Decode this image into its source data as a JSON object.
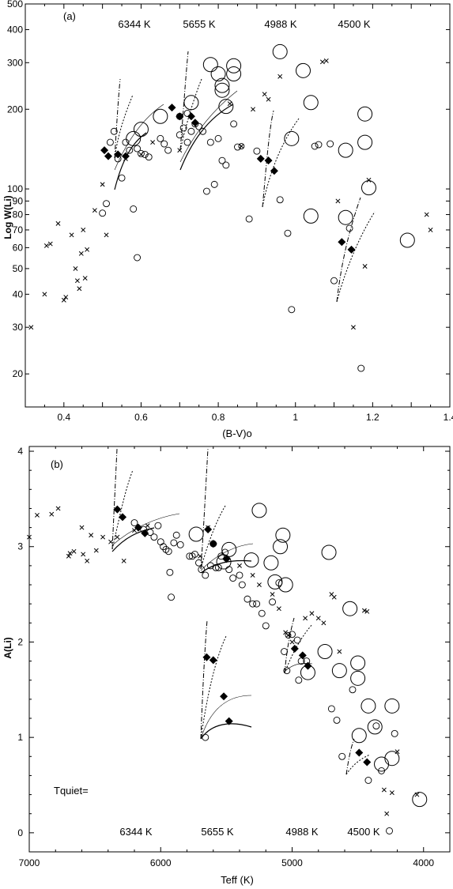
{
  "chart_data": [
    {
      "panel": "(a)",
      "type": "scatter",
      "xlabel": "(B-V)o",
      "ylabel": "Log W(Li)",
      "xlim": [
        0.3,
        1.4
      ],
      "ylim": [
        15,
        500
      ],
      "yscale": "log",
      "xticks": [
        "0.4",
        "0.6",
        "0.8",
        "1",
        "1.2",
        "1.4"
      ],
      "yticks": [
        "20",
        "30",
        "40",
        "50",
        "60",
        "70",
        "80",
        "90",
        "100",
        "200",
        "300",
        "400",
        "500"
      ],
      "annotations": [
        "6344 K",
        "5655 K",
        "4988 K",
        "4500 K"
      ],
      "series": [
        {
          "marker": "cross",
          "points": [
            [
              0.315,
              30
            ],
            [
              0.35,
              40
            ],
            [
              0.355,
              61
            ],
            [
              0.365,
              62
            ],
            [
              0.385,
              74
            ],
            [
              0.4,
              38
            ],
            [
              0.405,
              39
            ],
            [
              0.42,
              67
            ],
            [
              0.43,
              50
            ],
            [
              0.435,
              45
            ],
            [
              0.44,
              42
            ],
            [
              0.445,
              57
            ],
            [
              0.45,
              70
            ],
            [
              0.455,
              46
            ],
            [
              0.46,
              59
            ],
            [
              0.48,
              83
            ],
            [
              0.5,
              104
            ],
            [
              0.51,
              67
            ],
            [
              0.56,
              130
            ],
            [
              0.6,
              135
            ],
            [
              0.63,
              150
            ],
            [
              0.7,
              140
            ],
            [
              0.83,
              210
            ],
            [
              0.86,
              145
            ],
            [
              0.89,
              200
            ],
            [
              0.92,
              228
            ],
            [
              0.93,
              218
            ],
            [
              0.96,
              266
            ],
            [
              1.07,
              302
            ],
            [
              1.08,
              305
            ],
            [
              1.11,
              90
            ],
            [
              1.15,
              30
            ],
            [
              1.18,
              51
            ],
            [
              1.19,
              108
            ],
            [
              1.34,
              80
            ],
            [
              1.35,
              70
            ]
          ]
        },
        {
          "marker": "open-circle",
          "points": [
            [
              0.5,
              81
            ],
            [
              0.51,
              88
            ],
            [
              0.52,
              150
            ],
            [
              0.53,
              165
            ],
            [
              0.54,
              130
            ],
            [
              0.55,
              110
            ],
            [
              0.56,
              150
            ],
            [
              0.57,
              140
            ],
            [
              0.58,
              84
            ],
            [
              0.59,
              55
            ],
            [
              0.59,
              142
            ],
            [
              0.6,
              136
            ],
            [
              0.61,
              135
            ],
            [
              0.62,
              132
            ],
            [
              0.65,
              155
            ],
            [
              0.66,
              148
            ],
            [
              0.67,
              140
            ],
            [
              0.7,
              160
            ],
            [
              0.71,
              170
            ],
            [
              0.72,
              150
            ],
            [
              0.73,
              165
            ],
            [
              0.74,
              176
            ],
            [
              0.75,
              172
            ],
            [
              0.76,
              165
            ],
            [
              0.77,
              98
            ],
            [
              0.78,
              150
            ],
            [
              0.79,
              104
            ],
            [
              0.8,
              155
            ],
            [
              0.81,
              128
            ],
            [
              0.82,
              123
            ],
            [
              0.84,
              176
            ],
            [
              0.85,
              144
            ],
            [
              0.88,
              77
            ],
            [
              0.96,
              91
            ],
            [
              0.98,
              68
            ],
            [
              0.99,
              35
            ],
            [
              1.1,
              45
            ],
            [
              1.14,
              71
            ],
            [
              1.17,
              21
            ],
            [
              1.06,
              147
            ],
            [
              1.09,
              148
            ],
            [
              1.05,
              145
            ],
            [
              0.9,
              139
            ],
            [
              0.7,
              188
            ],
            [
              0.72,
              193
            ]
          ]
        },
        {
          "marker": "open-circle-large",
          "points": [
            [
              0.58,
              155
            ],
            [
              0.6,
              168
            ],
            [
              0.65,
              188
            ],
            [
              0.73,
              212
            ],
            [
              0.78,
              295
            ],
            [
              0.8,
              272
            ],
            [
              0.81,
              246
            ],
            [
              0.82,
              205
            ],
            [
              0.84,
              292
            ],
            [
              0.96,
              330
            ],
            [
              0.99,
              155
            ],
            [
              1.02,
              280
            ],
            [
              1.04,
              212
            ],
            [
              1.04,
              79
            ],
            [
              1.13,
              78
            ],
            [
              1.13,
              140
            ],
            [
              1.18,
              192
            ],
            [
              1.18,
              150
            ],
            [
              1.19,
              101
            ],
            [
              1.29,
              64
            ],
            [
              0.84,
              272
            ],
            [
              0.81,
              236
            ]
          ]
        },
        {
          "marker": "filled-diamond",
          "points": [
            [
              0.505,
              140
            ],
            [
              0.515,
              133
            ],
            [
              0.54,
              135
            ],
            [
              0.56,
              133
            ],
            [
              0.68,
              203
            ],
            [
              0.7,
              188
            ],
            [
              0.73,
              188
            ],
            [
              0.74,
              178
            ],
            [
              0.91,
              130
            ],
            [
              0.93,
              128
            ],
            [
              0.945,
              117
            ],
            [
              1.12,
              63
            ],
            [
              1.145,
              59
            ]
          ]
        }
      ]
    },
    {
      "panel": "(b)",
      "type": "scatter",
      "xlabel": "Teff (K)",
      "ylabel": "A(Li)",
      "xlim": [
        7000,
        3800
      ],
      "ylim": [
        -0.2,
        4.05
      ],
      "xticks": [
        "7000",
        "6000",
        "5000",
        "4000"
      ],
      "yticks": [
        "0",
        "1",
        "2",
        "3",
        "4"
      ],
      "annotations": [
        "Tquiet=",
        "6344 K",
        "5655 K",
        "4988 K",
        "4500 K"
      ],
      "series": [
        {
          "marker": "cross",
          "points": [
            [
              7000,
              3.1
            ],
            [
              6940,
              3.33
            ],
            [
              6830,
              3.34
            ],
            [
              6780,
              3.4
            ],
            [
              6700,
              2.9
            ],
            [
              6690,
              2.93
            ],
            [
              6660,
              2.95
            ],
            [
              6600,
              3.2
            ],
            [
              6590,
              2.92
            ],
            [
              6560,
              2.85
            ],
            [
              6530,
              3.12
            ],
            [
              6490,
              2.96
            ],
            [
              6440,
              3.1
            ],
            [
              6380,
              3.05
            ],
            [
              6330,
              3.1
            ],
            [
              6280,
              2.85
            ],
            [
              6200,
              3.17
            ],
            [
              6100,
              3.22
            ],
            [
              5700,
              2.9
            ],
            [
              5640,
              3.2
            ],
            [
              5400,
              2.8
            ],
            [
              5300,
              2.7
            ],
            [
              5250,
              2.6
            ],
            [
              5150,
              2.5
            ],
            [
              5100,
              2.35
            ],
            [
              5050,
              2.1
            ],
            [
              5000,
              2.0
            ],
            [
              4900,
              2.25
            ],
            [
              4850,
              2.3
            ],
            [
              4800,
              2.25
            ],
            [
              4760,
              2.2
            ],
            [
              4700,
              2.5
            ],
            [
              4680,
              2.47
            ],
            [
              4640,
              1.9
            ],
            [
              4450,
              2.33
            ],
            [
              4430,
              2.32
            ],
            [
              4300,
              0.45
            ],
            [
              4280,
              0.2
            ],
            [
              4240,
              0.42
            ],
            [
              4200,
              0.85
            ],
            [
              4050,
              0.4
            ]
          ]
        },
        {
          "marker": "open-circle",
          "points": [
            [
              6200,
              3.25
            ],
            [
              6130,
              3.18
            ],
            [
              6080,
              3.15
            ],
            [
              6050,
              3.1
            ],
            [
              6020,
              3.22
            ],
            [
              6000,
              3.05
            ],
            [
              5980,
              3.0
            ],
            [
              5960,
              2.97
            ],
            [
              5940,
              2.95
            ],
            [
              5930,
              2.73
            ],
            [
              5920,
              2.47
            ],
            [
              5900,
              3.04
            ],
            [
              5880,
              3.12
            ],
            [
              5850,
              3.02
            ],
            [
              5780,
              2.9
            ],
            [
              5760,
              2.9
            ],
            [
              5740,
              2.92
            ],
            [
              5710,
              2.83
            ],
            [
              5690,
              2.76
            ],
            [
              5660,
              2.7
            ],
            [
              5620,
              2.8
            ],
            [
              5600,
              3.03
            ],
            [
              5580,
              2.78
            ],
            [
              5560,
              2.78
            ],
            [
              5540,
              2.9
            ],
            [
              5510,
              2.94
            ],
            [
              5480,
              2.76
            ],
            [
              5450,
              2.67
            ],
            [
              5400,
              2.7
            ],
            [
              5380,
              2.6
            ],
            [
              5340,
              2.45
            ],
            [
              5300,
              2.4
            ],
            [
              5270,
              2.4
            ],
            [
              5230,
              2.3
            ],
            [
              5200,
              2.17
            ],
            [
              5150,
              2.42
            ],
            [
              5100,
              2.62
            ],
            [
              5060,
              1.9
            ],
            [
              5040,
              1.7
            ],
            [
              5000,
              2.08
            ],
            [
              4960,
              2.02
            ],
            [
              4950,
              1.6
            ],
            [
              4930,
              1.8
            ],
            [
              4890,
              1.8
            ],
            [
              4700,
              1.3
            ],
            [
              4660,
              1.18
            ],
            [
              4620,
              0.8
            ],
            [
              4540,
              1.5
            ],
            [
              4420,
              0.55
            ],
            [
              4360,
              1.12
            ],
            [
              4320,
              0.65
            ],
            [
              4260,
              0.02
            ],
            [
              4220,
              1.04
            ],
            [
              5660,
              1.0
            ]
          ]
        },
        {
          "marker": "open-circle-large",
          "points": [
            [
              5730,
              3.13
            ],
            [
              5520,
              2.84
            ],
            [
              5480,
              2.97
            ],
            [
              5310,
              2.86
            ],
            [
              5250,
              3.38
            ],
            [
              5160,
              2.83
            ],
            [
              5130,
              2.63
            ],
            [
              5090,
              3.0
            ],
            [
              5070,
              3.12
            ],
            [
              5050,
              2.6
            ],
            [
              4720,
              2.94
            ],
            [
              4640,
              1.7
            ],
            [
              4560,
              2.35
            ],
            [
              4500,
              1.78
            ],
            [
              4500,
              1.62
            ],
            [
              4490,
              1.02
            ],
            [
              4420,
              1.33
            ],
            [
              4370,
              1.11
            ],
            [
              4320,
              0.72
            ],
            [
              4240,
              0.78
            ],
            [
              4240,
              1.33
            ],
            [
              4030,
              0.35
            ],
            [
              4880,
              1.68
            ],
            [
              4750,
              1.9
            ]
          ]
        },
        {
          "marker": "filled-diamond",
          "points": [
            [
              6330,
              3.39
            ],
            [
              6290,
              3.31
            ],
            [
              6170,
              3.2
            ],
            [
              6120,
              3.14
            ],
            [
              5640,
              3.18
            ],
            [
              5600,
              3.03
            ],
            [
              5500,
              2.87
            ],
            [
              5650,
              1.84
            ],
            [
              5600,
              1.81
            ],
            [
              5520,
              1.43
            ],
            [
              5480,
              1.17
            ],
            [
              4980,
              1.93
            ],
            [
              4920,
              1.86
            ],
            [
              4880,
              1.75
            ],
            [
              4490,
              0.84
            ],
            [
              4430,
              0.74
            ]
          ]
        }
      ]
    }
  ]
}
